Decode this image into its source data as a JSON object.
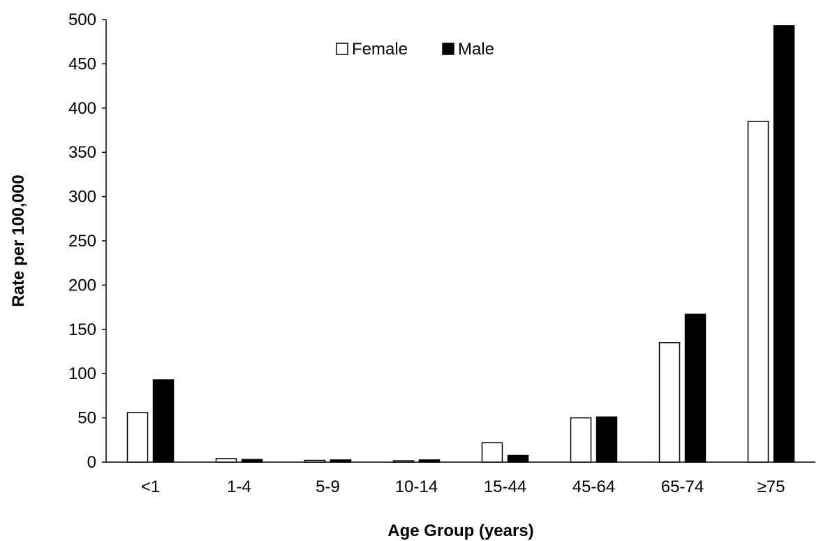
{
  "chart_data": {
    "type": "bar",
    "title": "",
    "xlabel": "Age Group (years)",
    "ylabel": "Rate per 100,000",
    "categories": [
      "<1",
      "1-4",
      "5-9",
      "10-14",
      "15-44",
      "45-64",
      "65-74",
      "≥75"
    ],
    "series": [
      {
        "name": "Female",
        "values": [
          56,
          4,
          2,
          1.5,
          22,
          50,
          135,
          385
        ],
        "fill": "#ffffff",
        "stroke": "#000000"
      },
      {
        "name": "Male",
        "values": [
          93,
          3,
          2.5,
          2.5,
          7.5,
          51,
          167,
          493
        ],
        "fill": "#000000",
        "stroke": "#000000"
      }
    ],
    "ylim": [
      0,
      500
    ],
    "yticks": [
      0,
      50,
      100,
      150,
      200,
      250,
      300,
      350,
      400,
      450,
      500
    ],
    "grid": false,
    "legend_position": "top-center"
  }
}
